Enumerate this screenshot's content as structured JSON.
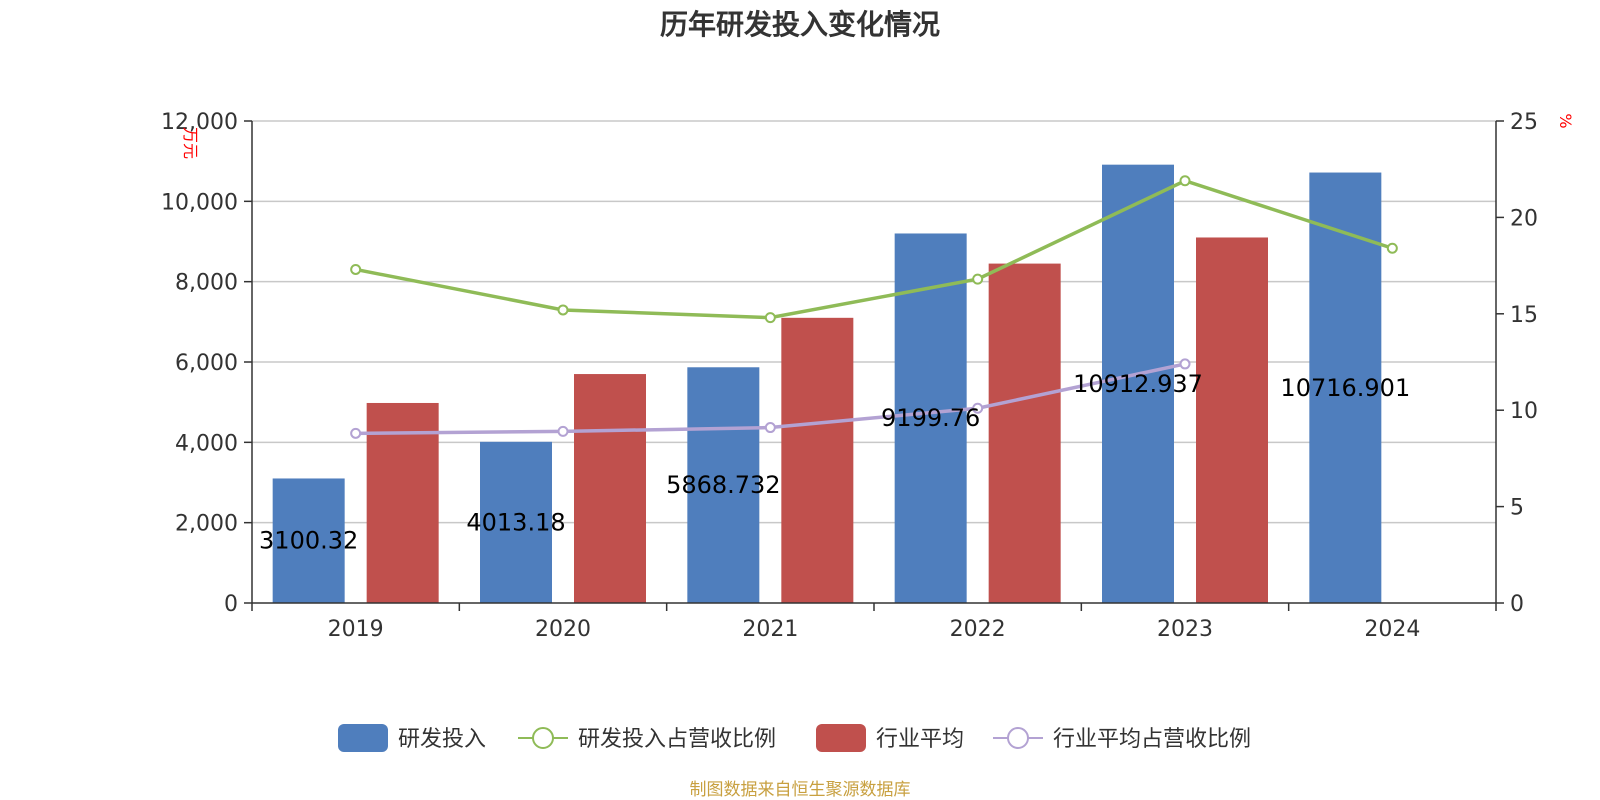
{
  "title": "历年研发投入变化情况",
  "source": "制图数据来自恒生聚源数据库",
  "colors": {
    "rd": "#4f7ebd",
    "ratio": "#8fbb57",
    "industry": "#c0504d",
    "industry_ratio": "#b3a2d3",
    "grid": "#c8c8c8",
    "axis": "#333333"
  },
  "chart_data": {
    "type": "bar",
    "categories": [
      "2019",
      "2020",
      "2021",
      "2022",
      "2023",
      "2024"
    ],
    "y_left": {
      "unit": "万元",
      "ylim": [
        0,
        12000
      ],
      "ticks": [
        "0",
        "2,000",
        "4,000",
        "6,000",
        "8,000",
        "10,000",
        "12,000"
      ]
    },
    "y_right": {
      "unit": "%",
      "ylim": [
        0,
        25
      ],
      "ticks": [
        "0",
        "5",
        "10",
        "15",
        "20",
        "25"
      ]
    },
    "grid": true,
    "legend_position": "bottom",
    "series": [
      {
        "name": "研发投入",
        "kind": "bar",
        "axis": "left",
        "values": [
          3100.32,
          4013.18,
          5868.732,
          9199.76,
          10912.937,
          10716.901
        ],
        "labels": [
          "3100.32",
          "4013.18",
          "5868.732",
          "9199.76",
          "10912.937",
          "10716.901"
        ]
      },
      {
        "name": "研发投入占营收比例",
        "kind": "line",
        "axis": "right",
        "values": [
          17.3,
          15.2,
          14.8,
          16.8,
          21.9,
          18.4
        ]
      },
      {
        "name": "行业平均",
        "kind": "bar",
        "axis": "left",
        "values": [
          4980,
          5700,
          7100,
          8450,
          9100,
          null
        ]
      },
      {
        "name": "行业平均占营收比例",
        "kind": "line",
        "axis": "right",
        "values": [
          8.8,
          8.9,
          9.1,
          10.1,
          12.4,
          null
        ]
      }
    ]
  }
}
